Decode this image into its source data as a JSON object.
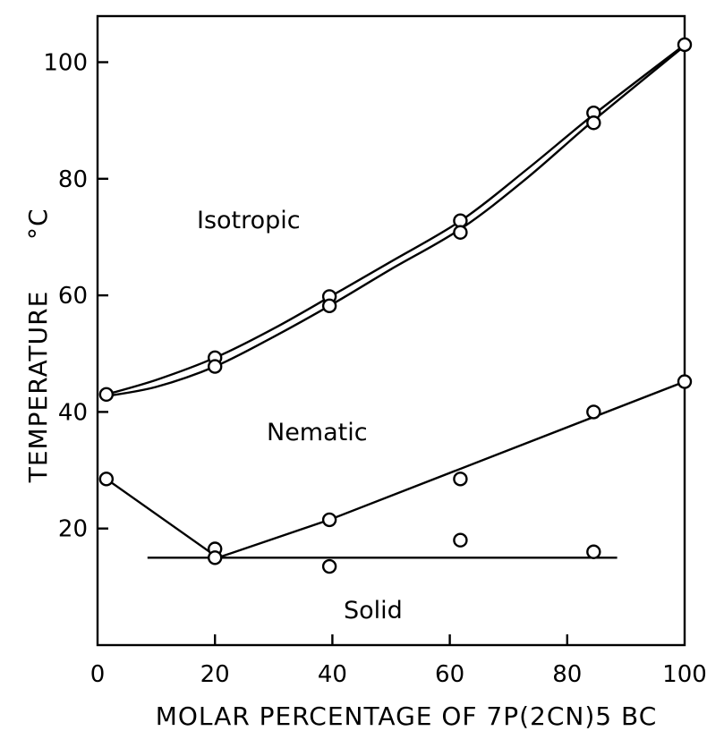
{
  "chart_data": {
    "type": "scatter",
    "title": "",
    "xlabel": "MOLAR PERCENTAGE OF 7P(2CN)5 BC",
    "ylabel": "TEMPERATURE",
    "ylabel_unit": "°C",
    "xlim": [
      0,
      100
    ],
    "ylim": [
      0,
      110
    ],
    "x_ticks": [
      0,
      20,
      40,
      60,
      80,
      100
    ],
    "y_ticks": [
      20,
      40,
      60,
      80,
      100
    ],
    "x_tick_labels": [
      "0",
      "20",
      "40",
      "60",
      "80",
      "100"
    ],
    "y_tick_labels": [
      "20",
      "40",
      "60",
      "80",
      "100"
    ],
    "grid": false,
    "legend": "none",
    "regions": [
      "Isotropic",
      "Nematic",
      "Solid"
    ],
    "series": [
      {
        "id": "clearing-upper",
        "points": [
          [
            1.5,
            43
          ],
          [
            20,
            49.3
          ],
          [
            39.5,
            59.8
          ],
          [
            61.8,
            72.8
          ],
          [
            84.5,
            91.3
          ],
          [
            100,
            103
          ]
        ],
        "curve": [
          [
            1.5,
            43
          ],
          [
            10,
            45.5
          ],
          [
            20,
            49.3
          ],
          [
            30,
            54.3
          ],
          [
            40,
            60
          ],
          [
            50,
            65.8
          ],
          [
            62,
            72.9
          ],
          [
            73,
            81.5
          ],
          [
            84.5,
            91
          ],
          [
            100,
            103
          ]
        ]
      },
      {
        "id": "clearing-lower",
        "points": [
          [
            20,
            47.8
          ],
          [
            39.5,
            58.2
          ],
          [
            61.8,
            70.8
          ],
          [
            84.5,
            89.6
          ]
        ],
        "curve": [
          [
            1.5,
            42.7
          ],
          [
            10,
            44.3
          ],
          [
            20,
            47.8
          ],
          [
            30,
            52.9
          ],
          [
            40,
            58.5
          ],
          [
            50,
            64.5
          ],
          [
            62,
            71.5
          ],
          [
            73,
            80
          ],
          [
            84.5,
            90
          ],
          [
            100,
            102.8
          ]
        ]
      },
      {
        "id": "melting",
        "points": [
          [
            1.5,
            28.5
          ],
          [
            20,
            16.5
          ],
          [
            20,
            15
          ],
          [
            39.5,
            21.5
          ],
          [
            61.8,
            28.5
          ],
          [
            61.8,
            18
          ],
          [
            84.5,
            40
          ],
          [
            84.5,
            16
          ],
          [
            100,
            45.2
          ],
          [
            39.5,
            13.5
          ]
        ],
        "curve": [
          [
            1.5,
            28.5
          ],
          [
            20.5,
            15
          ],
          [
            39.5,
            21.5
          ],
          [
            100,
            45.2
          ]
        ]
      },
      {
        "id": "eutectic",
        "points": [],
        "curve": [
          [
            8.5,
            15
          ],
          [
            88.5,
            15
          ]
        ]
      }
    ]
  }
}
